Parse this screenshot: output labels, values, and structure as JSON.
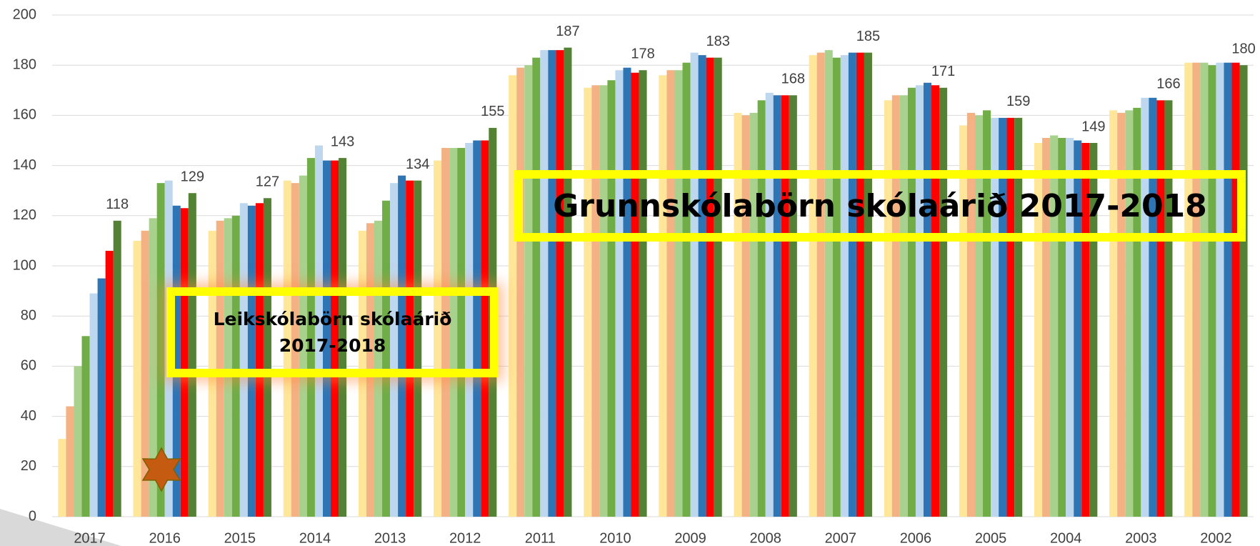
{
  "chart_data": {
    "type": "bar",
    "categories": [
      "2017",
      "2016",
      "2015",
      "2014",
      "2013",
      "2012",
      "2011",
      "2010",
      "2009",
      "2008",
      "2007",
      "2006",
      "2005",
      "2004",
      "2003",
      "2002"
    ],
    "series": [
      {
        "color": "#ffe699",
        "values": [
          31,
          110,
          114,
          134,
          114,
          142,
          176,
          171,
          176,
          161,
          184,
          166,
          156,
          149,
          162,
          181
        ]
      },
      {
        "color": "#f4b183",
        "values": [
          44,
          114,
          118,
          133,
          117,
          147,
          179,
          172,
          178,
          160,
          185,
          168,
          161,
          151,
          161,
          181
        ]
      },
      {
        "color": "#a9d18e",
        "values": [
          60,
          119,
          119,
          136,
          118,
          147,
          180,
          172,
          178,
          161,
          186,
          168,
          160,
          152,
          162,
          181
        ]
      },
      {
        "color": "#70ad47",
        "values": [
          72,
          133,
          120,
          143,
          126,
          147,
          183,
          174,
          181,
          166,
          183,
          171,
          162,
          151,
          163,
          180
        ]
      },
      {
        "color": "#bdd7ee",
        "values": [
          89,
          134,
          125,
          148,
          133,
          149,
          186,
          178,
          185,
          169,
          184,
          172,
          159,
          151,
          167,
          181
        ]
      },
      {
        "color": "#2e75b6",
        "values": [
          95,
          124,
          124,
          142,
          136,
          150,
          186,
          179,
          184,
          168,
          185,
          173,
          159,
          150,
          167,
          181
        ]
      },
      {
        "color": "#ff0000",
        "values": [
          106,
          123,
          125,
          142,
          134,
          150,
          186,
          177,
          183,
          168,
          185,
          172,
          159,
          149,
          166,
          181
        ]
      },
      {
        "color": "#548235",
        "labels": true,
        "values": [
          118,
          129,
          127,
          143,
          134,
          155,
          187,
          178,
          183,
          168,
          185,
          171,
          159,
          149,
          166,
          180
        ]
      }
    ],
    "ylim": [
      0,
      200
    ],
    "yticks": [
      0,
      20,
      40,
      60,
      80,
      100,
      120,
      140,
      160,
      180,
      200
    ],
    "grid": true,
    "annotations": [
      "Grunnskólabörn skólaárið 2017-2018",
      "Leikskólabörn skólaárið 2017-2018"
    ]
  }
}
